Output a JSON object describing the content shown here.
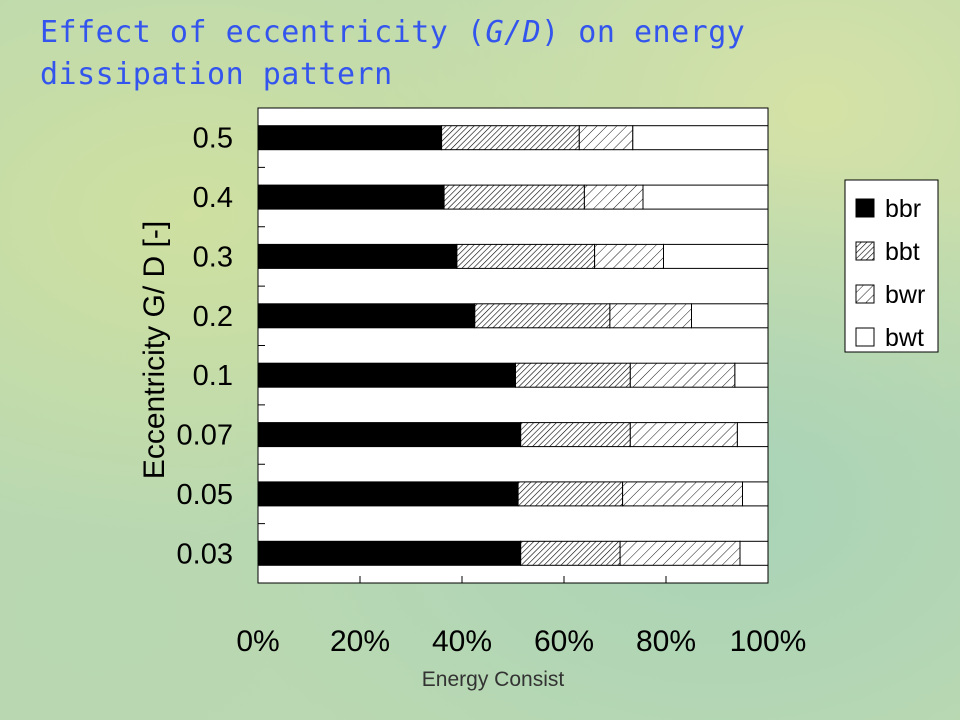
{
  "title": {
    "part1": "Effect of eccentricity (",
    "italic": "G/D",
    "part2": ") on energy dissipation pattern",
    "color": "#3355ee"
  },
  "chart_data": {
    "type": "bar",
    "orientation": "horizontal",
    "stacked": "percent",
    "categories": [
      "0.5",
      "0.4",
      "0.3",
      "0.2",
      "0.1",
      "0.07",
      "0.05",
      "0.03"
    ],
    "series": [
      {
        "name": "bbr",
        "fill": "solid-black",
        "values": [
          36,
          36.5,
          39,
          42.5,
          50.5,
          51.5,
          51,
          51.5
        ]
      },
      {
        "name": "bbt",
        "fill": "dense-hatch",
        "values": [
          27,
          27.5,
          27,
          26.5,
          22.5,
          21.5,
          20.5,
          19.5
        ]
      },
      {
        "name": "bwr",
        "fill": "light-hatch",
        "values": [
          10.5,
          11.5,
          13.5,
          16,
          20.5,
          21,
          23.5,
          23.5
        ]
      },
      {
        "name": "bwt",
        "fill": "white",
        "values": [
          26.5,
          24.5,
          20.5,
          15,
          6.5,
          6,
          5,
          5.5
        ]
      }
    ],
    "x_ticks": [
      "0%",
      "20%",
      "40%",
      "60%",
      "80%",
      "100%"
    ],
    "xlabel": "Energy Consist",
    "ylabel": "Eccentricity G/ D [-]",
    "xlim": [
      0,
      100
    ],
    "legend_position": "right",
    "grid": false
  }
}
